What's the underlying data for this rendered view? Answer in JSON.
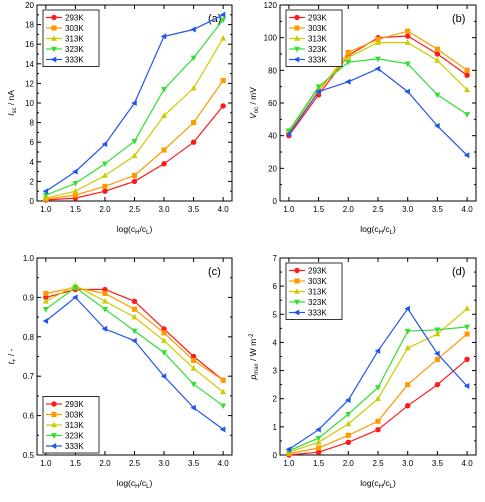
{
  "colors": {
    "293K": "#ff1a1a",
    "303K": "#ff9900",
    "313K": "#cccc00",
    "323K": "#33dd33",
    "333K": "#2255ee"
  },
  "chart_data": [
    {
      "type": "line",
      "panel_label": "(a)",
      "ylabel_main": "I",
      "ylabel_sub": "sc",
      "ylabel_unit": " / nA",
      "xlabel_main": "log(c",
      "xlabel_h": "H",
      "xlabel_mid": "/c",
      "xlabel_l": "L",
      "xlabel_end": ")",
      "x": [
        1.0,
        1.5,
        2.0,
        2.5,
        3.0,
        3.5,
        4.0
      ],
      "x_ticks": [
        "1.0",
        "1.5",
        "2.0",
        "2.5",
        "3.0",
        "3.5",
        "4.0"
      ],
      "xlim": [
        0.85,
        4.15
      ],
      "ylim": [
        0,
        20
      ],
      "y_ticks": [
        "0",
        "2",
        "4",
        "6",
        "8",
        "10",
        "12",
        "14",
        "16",
        "18",
        "20"
      ],
      "legend_position": "top-left",
      "series": [
        {
          "name": "293K",
          "marker": "circle",
          "values": [
            0.1,
            0.3,
            1.0,
            2.0,
            3.8,
            6.0,
            9.7
          ]
        },
        {
          "name": "303K",
          "marker": "square",
          "values": [
            0.2,
            0.6,
            1.5,
            2.6,
            5.2,
            8.0,
            12.3
          ]
        },
        {
          "name": "313K",
          "marker": "triangle-up",
          "values": [
            0.3,
            1.0,
            2.6,
            4.6,
            8.7,
            11.5,
            16.6
          ]
        },
        {
          "name": "323K",
          "marker": "triangle-down",
          "values": [
            0.6,
            1.8,
            3.8,
            6.1,
            11.4,
            14.6,
            18.5
          ]
        },
        {
          "name": "333K",
          "marker": "triangle-left",
          "values": [
            1.0,
            3.0,
            5.8,
            10.0,
            16.8,
            17.5,
            19.0
          ]
        }
      ]
    },
    {
      "type": "line",
      "panel_label": "(b)",
      "ylabel_main": "V",
      "ylabel_sub": "oc",
      "ylabel_unit": " / mV",
      "xlabel_main": "log(c",
      "xlabel_h": "H",
      "xlabel_mid": "/c",
      "xlabel_l": "L",
      "xlabel_end": ")",
      "x": [
        1.0,
        1.5,
        2.0,
        2.5,
        3.0,
        3.5,
        4.0
      ],
      "x_ticks": [
        "1.0",
        "1.5",
        "2.0",
        "2.5",
        "3.0",
        "3.5",
        "4.0"
      ],
      "xlim": [
        0.85,
        4.15
      ],
      "ylim": [
        0,
        120
      ],
      "y_ticks": [
        "0",
        "20",
        "40",
        "60",
        "80",
        "100",
        "120"
      ],
      "legend_position": "top-left",
      "series": [
        {
          "name": "293K",
          "marker": "circle",
          "values": [
            40,
            65,
            89,
            100,
            101,
            90,
            77
          ]
        },
        {
          "name": "303K",
          "marker": "square",
          "values": [
            42,
            67,
            91,
            99,
            104,
            93,
            80
          ]
        },
        {
          "name": "313K",
          "marker": "triangle-up",
          "values": [
            43,
            69,
            88,
            97,
            97,
            86,
            68
          ]
        },
        {
          "name": "323K",
          "marker": "triangle-down",
          "values": [
            43,
            70,
            85,
            87,
            84,
            65,
            53
          ]
        },
        {
          "name": "333K",
          "marker": "triangle-left",
          "values": [
            41,
            67,
            73,
            81,
            67,
            46,
            28
          ]
        }
      ]
    },
    {
      "type": "line",
      "panel_label": "(c)",
      "ylabel_main": "t",
      "ylabel_sub": "+",
      "ylabel_unit": " / -",
      "xlabel_main": "log(c",
      "xlabel_h": "H",
      "xlabel_mid": "/c",
      "xlabel_l": "L",
      "xlabel_end": ")",
      "x": [
        1.0,
        1.5,
        2.0,
        2.5,
        3.0,
        3.5,
        4.0
      ],
      "x_ticks": [
        "1.0",
        "1.5",
        "2.0",
        "2.5",
        "3.0",
        "3.5",
        "4.0"
      ],
      "xlim": [
        0.85,
        4.15
      ],
      "ylim": [
        0.5,
        1.0
      ],
      "y_ticks": [
        "0.5",
        "0.6",
        "0.7",
        "0.8",
        "0.9",
        "1.0"
      ],
      "legend_position": "bottom-left",
      "series": [
        {
          "name": "293K",
          "marker": "circle",
          "values": [
            0.9,
            0.92,
            0.92,
            0.89,
            0.82,
            0.75,
            0.69
          ]
        },
        {
          "name": "303K",
          "marker": "square",
          "values": [
            0.91,
            0.925,
            0.91,
            0.87,
            0.81,
            0.74,
            0.69
          ]
        },
        {
          "name": "313K",
          "marker": "triangle-up",
          "values": [
            0.89,
            0.93,
            0.89,
            0.85,
            0.79,
            0.72,
            0.66
          ]
        },
        {
          "name": "323K",
          "marker": "triangle-down",
          "values": [
            0.87,
            0.925,
            0.87,
            0.815,
            0.76,
            0.68,
            0.625
          ]
        },
        {
          "name": "333K",
          "marker": "triangle-left",
          "values": [
            0.84,
            0.9,
            0.82,
            0.79,
            0.7,
            0.62,
            0.565
          ]
        }
      ]
    },
    {
      "type": "line",
      "panel_label": "(d)",
      "ylabel_main": "p",
      "ylabel_sub": "max",
      "ylabel_unit": " / W m",
      "ylabel_sup": "-2",
      "xlabel_main": "log(c",
      "xlabel_h": "H",
      "xlabel_mid": "/c",
      "xlabel_l": "L",
      "xlabel_end": ")",
      "x": [
        1.0,
        1.5,
        2.0,
        2.5,
        3.0,
        3.5,
        4.0
      ],
      "x_ticks": [
        "1.0",
        "1.5",
        "2.0",
        "2.5",
        "3.0",
        "3.5",
        "4.0"
      ],
      "xlim": [
        0.85,
        4.15
      ],
      "ylim": [
        0,
        7
      ],
      "y_ticks": [
        "0",
        "1",
        "2",
        "3",
        "4",
        "5",
        "6",
        "7"
      ],
      "legend_position": "top-left",
      "series": [
        {
          "name": "293K",
          "marker": "circle",
          "values": [
            0.0,
            0.1,
            0.45,
            0.9,
            1.75,
            2.5,
            3.4
          ]
        },
        {
          "name": "303K",
          "marker": "square",
          "values": [
            0.05,
            0.25,
            0.7,
            1.2,
            2.5,
            3.4,
            4.3
          ]
        },
        {
          "name": "313K",
          "marker": "triangle-up",
          "values": [
            0.1,
            0.45,
            1.1,
            2.0,
            3.8,
            4.3,
            5.2
          ]
        },
        {
          "name": "323K",
          "marker": "triangle-down",
          "values": [
            0.15,
            0.6,
            1.45,
            2.4,
            4.4,
            4.45,
            4.55
          ]
        },
        {
          "name": "333K",
          "marker": "triangle-left",
          "values": [
            0.2,
            0.9,
            1.95,
            3.7,
            5.2,
            3.6,
            2.45
          ]
        }
      ]
    }
  ]
}
